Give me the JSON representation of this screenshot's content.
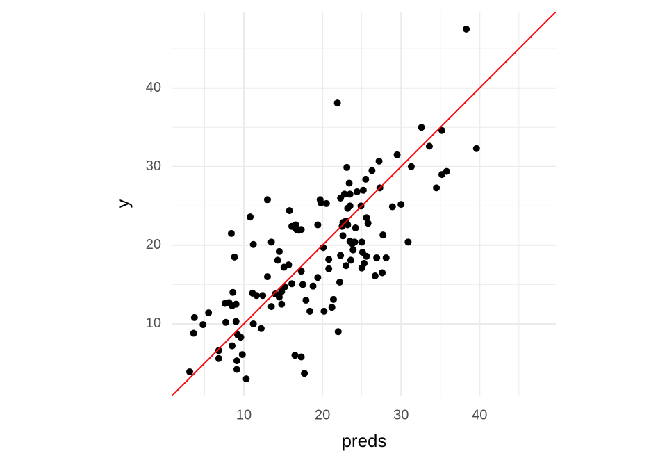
{
  "chart_data": {
    "type": "scatter",
    "x_label": "preds",
    "y_label": "y",
    "x": [
      3.1,
      3.7,
      3.6,
      4.8,
      5.5,
      6.8,
      6.8,
      7.6,
      7.7,
      8.1,
      8.5,
      8.4,
      8.5,
      8.6,
      8.8,
      9.0,
      9.0,
      9.1,
      9.1,
      9.2,
      9.6,
      9.8,
      10.3,
      10.8,
      11.1,
      11.2,
      11.2,
      11.6,
      12.2,
      12.4,
      13.0,
      13.0,
      13.5,
      13.5,
      14.0,
      14.3,
      14.5,
      14.5,
      14.8,
      14.8,
      15.1,
      15.2,
      15.7,
      15.8,
      16.1,
      16.1,
      16.5,
      16.6,
      16.7,
      17.0,
      17.3,
      17.3,
      17.3,
      17.7,
      17.5,
      17.9,
      18.4,
      18.8,
      19.4,
      19.4,
      19.7,
      19.8,
      20.1,
      20.2,
      20.5,
      20.8,
      20.8,
      21.2,
      21.4,
      21.9,
      22.0,
      22.2,
      22.3,
      22.3,
      22.5,
      22.6,
      22.6,
      22.8,
      23.0,
      23.0,
      23.1,
      23.2,
      23.2,
      23.4,
      23.5,
      23.5,
      23.5,
      23.6,
      23.8,
      23.9,
      24.1,
      24.2,
      24.4,
      24.9,
      25.0,
      25.0,
      25.1,
      25.2,
      25.3,
      25.5,
      25.6,
      25.6,
      25.8,
      26.3,
      26.7,
      26.9,
      27.2,
      27.3,
      27.6,
      27.7,
      28.1,
      28.9,
      29.5,
      30.0,
      30.9,
      31.3,
      32.6,
      33.6,
      34.5,
      35.2,
      35.2,
      35.8,
      38.3,
      39.6
    ],
    "y": [
      3.9,
      10.8,
      8.8,
      9.9,
      11.4,
      6.6,
      5.6,
      12.6,
      10.2,
      12.7,
      7.2,
      21.5,
      12.3,
      14.0,
      18.5,
      12.5,
      10.3,
      5.3,
      4.2,
      8.6,
      8.3,
      6.1,
      3.0,
      23.6,
      13.9,
      20.1,
      10.0,
      13.6,
      9.4,
      13.6,
      25.8,
      16.0,
      20.4,
      12.2,
      13.8,
      18.1,
      19.2,
      13.4,
      12.5,
      14.1,
      17.2,
      14.7,
      17.5,
      24.4,
      22.4,
      15.1,
      6.0,
      22.6,
      22.0,
      21.9,
      22.0,
      16.7,
      5.8,
      3.7,
      15.0,
      13.0,
      11.6,
      14.8,
      15.9,
      22.6,
      25.8,
      25.4,
      19.7,
      11.6,
      25.3,
      18.2,
      17.0,
      12.1,
      13.1,
      38.1,
      9.0,
      15.3,
      26.0,
      18.7,
      22.4,
      21.2,
      22.9,
      26.5,
      23.1,
      17.4,
      29.9,
      22.6,
      24.7,
      27.9,
      20.5,
      26.5,
      25.0,
      18.1,
      20.2,
      19.4,
      20.4,
      22.2,
      26.8,
      25.0,
      17.1,
      20.4,
      19.1,
      27.0,
      17.7,
      28.4,
      23.5,
      18.6,
      22.8,
      29.5,
      16.1,
      18.4,
      30.7,
      27.3,
      16.5,
      21.3,
      18.4,
      24.9,
      31.5,
      25.2,
      20.4,
      30.0,
      35.0,
      32.6,
      27.3,
      34.6,
      29.0,
      29.4,
      47.5,
      32.3
    ],
    "color": "#000000",
    "xlim": [
      0.8,
      49.7
    ],
    "ylim": [
      0.8,
      49.7
    ],
    "xticks": [
      10,
      20,
      30,
      40
    ],
    "yticks": [
      10,
      20,
      30,
      40
    ],
    "minor_xticks": [
      5,
      15,
      25,
      35,
      45
    ],
    "minor_yticks": [
      5,
      15,
      25,
      35,
      45
    ],
    "grid": true,
    "reference_line": {
      "slope": 1,
      "intercept": 0,
      "color": "#ff0000"
    }
  }
}
